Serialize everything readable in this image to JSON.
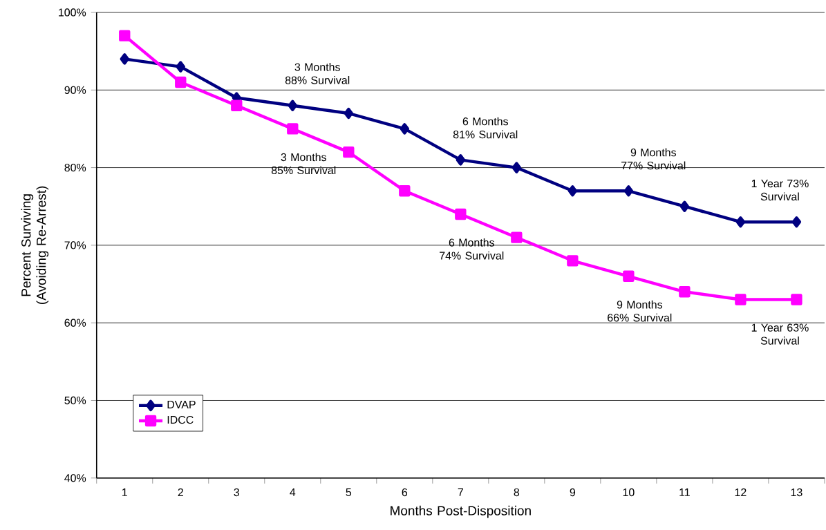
{
  "chart_data": {
    "type": "line",
    "xlabel": "Months Post-Disposition",
    "ylabel": "Percent Surviving (Avoiding Re-Arrest)",
    "categories": [
      "1",
      "2",
      "3",
      "4",
      "5",
      "6",
      "7",
      "8",
      "9",
      "10",
      "11",
      "12",
      "13"
    ],
    "series": [
      {
        "name": "DVAP",
        "color": "#000080",
        "marker": "diamond",
        "values": [
          94,
          93,
          89,
          88,
          87,
          85,
          81,
          80,
          77,
          77,
          75,
          73,
          73
        ]
      },
      {
        "name": "IDCC",
        "color": "#ff00ff",
        "marker": "square",
        "values": [
          97,
          91,
          88,
          85,
          82,
          77,
          74,
          71,
          68,
          66,
          64,
          63,
          63
        ]
      }
    ],
    "ylim": [
      40,
      100
    ],
    "yticks": [
      {
        "value": 40,
        "label": "40%"
      },
      {
        "value": 50,
        "label": "50%"
      },
      {
        "value": 60,
        "label": "60%"
      },
      {
        "value": 70,
        "label": "70%"
      },
      {
        "value": 80,
        "label": "80%"
      },
      {
        "value": 90,
        "label": "90%"
      },
      {
        "value": 100,
        "label": "100%"
      }
    ],
    "grid": "y",
    "legend": "bottom left",
    "line_style": "solid",
    "annotations": [
      {
        "text": "3 Months 88% Survival",
        "x": "4",
        "y": 88
      },
      {
        "text": "3 Months 85% Survival",
        "x": "4",
        "y": 85
      },
      {
        "text": "6 Months 81% Survival",
        "x": "7",
        "y": 81
      },
      {
        "text": "6 Months 74% Survival",
        "x": "7",
        "y": 74
      },
      {
        "text": "9 Months 77% Survival",
        "x": "10",
        "y": 77
      },
      {
        "text": "9 Months 66% Survival",
        "x": "10",
        "y": 66
      },
      {
        "text": "1 Year 73% Survival",
        "x": "13",
        "y": 73
      },
      {
        "text": "1 Year 63% Survival",
        "x": "13",
        "y": 63
      }
    ]
  }
}
